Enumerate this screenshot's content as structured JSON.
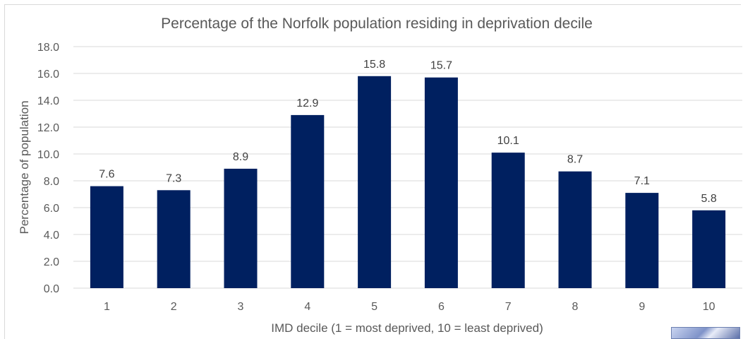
{
  "chart_data": {
    "type": "bar",
    "title": "Percentage of the Norfolk population residing in deprivation decile",
    "xlabel": "IMD decile (1 = most deprived, 10 = least deprived)",
    "ylabel": "Percentage of population",
    "categories": [
      "1",
      "2",
      "3",
      "4",
      "5",
      "6",
      "7",
      "8",
      "9",
      "10"
    ],
    "values": [
      7.6,
      7.3,
      8.9,
      12.9,
      15.8,
      15.7,
      10.1,
      8.7,
      7.1,
      5.8
    ],
    "data_labels": [
      "7.6",
      "7.3",
      "8.9",
      "12.9",
      "15.8",
      "15.7",
      "10.1",
      "8.7",
      "7.1",
      "5.8"
    ],
    "ylim": [
      0,
      18
    ],
    "yticks": [
      "0.0",
      "2.0",
      "4.0",
      "6.0",
      "8.0",
      "10.0",
      "12.0",
      "14.0",
      "16.0",
      "18.0"
    ],
    "grid": true,
    "legend": "none",
    "colors": {
      "bar": "#002060",
      "grid": "#d9d9d9",
      "text": "#595959"
    }
  }
}
